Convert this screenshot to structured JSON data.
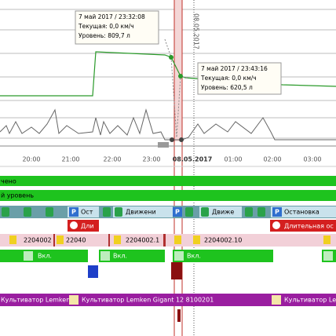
{
  "tooltips": [
    {
      "time": "7 май 2017 / 23:32:08",
      "speed": "Текущая: 0,0 км/ч",
      "level": "Уровень: 809,7 л"
    },
    {
      "time": "7 май 2017 / 23:43:16",
      "speed": "Текущая: 0,0 км/ч",
      "level": "Уровень: 620,5 л"
    }
  ],
  "date_marker": "08.05.2017",
  "time_axis": [
    "20:00",
    "21:00",
    "22:00",
    "23:00",
    "08.05.2017",
    "01:00",
    "02:00",
    "03:00"
  ],
  "rows": {
    "ignition_label": "чено",
    "level_label": "й уровень",
    "states": [
      "Ост",
      "Движени",
      "Движе",
      "Остановка"
    ],
    "long_stops": [
      "Дли",
      "Длительная ос"
    ],
    "geozones": [
      "2204002",
      "22040",
      "2204002.1",
      "2204002.10"
    ],
    "engine": [
      "Вкл.",
      "Вкл.",
      "Вкл."
    ],
    "equipment": [
      "Культиватор Lemken Gi",
      "Культиватор Lemken Gigant 12 8100201",
      "Культиватор Lemken"
    ]
  }
}
